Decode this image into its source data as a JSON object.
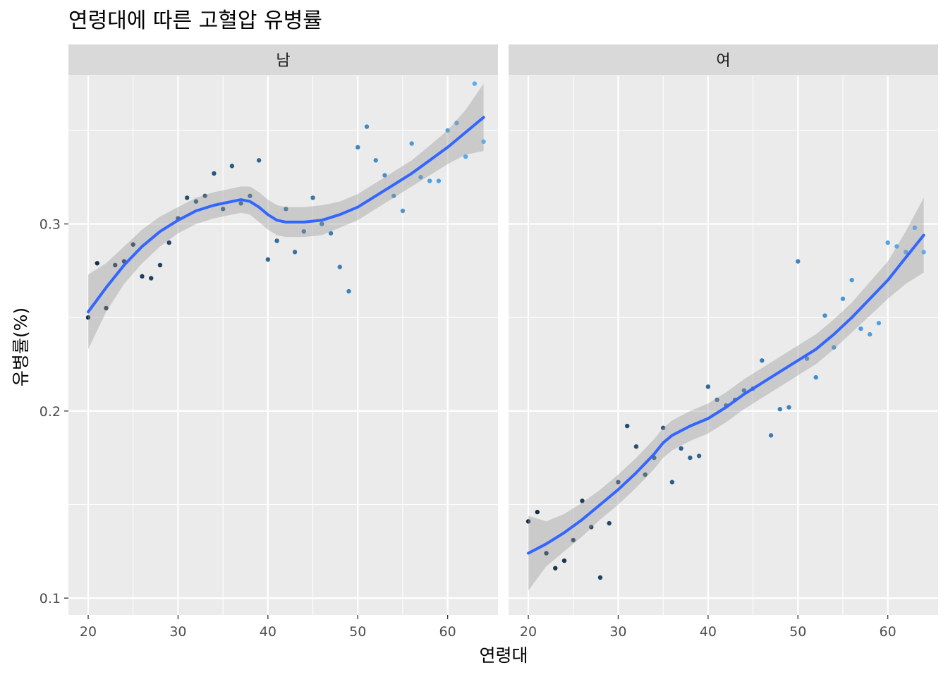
{
  "chart_data": {
    "type": "scatter",
    "title": "연령대에 따른 고혈압 유병률",
    "xlabel": "연령대",
    "ylabel": "유병률(%)",
    "x_ticks": [
      20,
      30,
      40,
      50,
      60
    ],
    "y_ticks": [
      "0.1",
      "0.2",
      "0.3"
    ],
    "y_tick_values": [
      0.1,
      0.2,
      0.3
    ],
    "xlim": [
      17.8,
      65.6
    ],
    "ylim": [
      0.091,
      0.379
    ],
    "grid": true,
    "legend": "none",
    "point_colors": {
      "low": "#132B43",
      "high": "#56B1F7"
    },
    "smooth_color": "#3366FF",
    "ribbon_color": "#999999",
    "panels": [
      {
        "name": "남",
        "points": [
          [
            20,
            0.25
          ],
          [
            21,
            0.279
          ],
          [
            22,
            0.255
          ],
          [
            23,
            0.278
          ],
          [
            24,
            0.28
          ],
          [
            25,
            0.289
          ],
          [
            26,
            0.272
          ],
          [
            27,
            0.271
          ],
          [
            28,
            0.278
          ],
          [
            29,
            0.29
          ],
          [
            30,
            0.303
          ],
          [
            31,
            0.314
          ],
          [
            32,
            0.312
          ],
          [
            33,
            0.315
          ],
          [
            34,
            0.327
          ],
          [
            35,
            0.308
          ],
          [
            36,
            0.331
          ],
          [
            37,
            0.311
          ],
          [
            38,
            0.315
          ],
          [
            39,
            0.334
          ],
          [
            40,
            0.281
          ],
          [
            41,
            0.291
          ],
          [
            42,
            0.308
          ],
          [
            43,
            0.285
          ],
          [
            44,
            0.296
          ],
          [
            45,
            0.314
          ],
          [
            46,
            0.3
          ],
          [
            47,
            0.295
          ],
          [
            48,
            0.277
          ],
          [
            49,
            0.264
          ],
          [
            50,
            0.341
          ],
          [
            51,
            0.352
          ],
          [
            52,
            0.334
          ],
          [
            53,
            0.326
          ],
          [
            54,
            0.315
          ],
          [
            55,
            0.307
          ],
          [
            56,
            0.343
          ],
          [
            57,
            0.325
          ],
          [
            58,
            0.323
          ],
          [
            59,
            0.323
          ],
          [
            60,
            0.35
          ],
          [
            61,
            0.354
          ],
          [
            62,
            0.336
          ],
          [
            63,
            0.375
          ],
          [
            64,
            0.344
          ]
        ],
        "smooth": [
          [
            20,
            0.253
          ],
          [
            22,
            0.266
          ],
          [
            24,
            0.278
          ],
          [
            26,
            0.288
          ],
          [
            28,
            0.296
          ],
          [
            30,
            0.302
          ],
          [
            32,
            0.307
          ],
          [
            34,
            0.31
          ],
          [
            36,
            0.312
          ],
          [
            37,
            0.313
          ],
          [
            38,
            0.312
          ],
          [
            39,
            0.309
          ],
          [
            40,
            0.305
          ],
          [
            41,
            0.302
          ],
          [
            42,
            0.301
          ],
          [
            44,
            0.301
          ],
          [
            46,
            0.302
          ],
          [
            48,
            0.305
          ],
          [
            50,
            0.309
          ],
          [
            52,
            0.315
          ],
          [
            54,
            0.321
          ],
          [
            56,
            0.327
          ],
          [
            58,
            0.334
          ],
          [
            60,
            0.341
          ],
          [
            62,
            0.349
          ],
          [
            64,
            0.357
          ]
        ],
        "ribbon": [
          [
            20,
            0.233,
            0.273
          ],
          [
            22,
            0.253,
            0.279
          ],
          [
            24,
            0.268,
            0.288
          ],
          [
            26,
            0.279,
            0.297
          ],
          [
            28,
            0.288,
            0.304
          ],
          [
            30,
            0.295,
            0.309
          ],
          [
            32,
            0.3,
            0.314
          ],
          [
            34,
            0.303,
            0.317
          ],
          [
            36,
            0.305,
            0.319
          ],
          [
            37,
            0.306,
            0.32
          ],
          [
            38,
            0.305,
            0.32
          ],
          [
            39,
            0.301,
            0.317
          ],
          [
            40,
            0.297,
            0.313
          ],
          [
            41,
            0.294,
            0.31
          ],
          [
            42,
            0.293,
            0.309
          ],
          [
            44,
            0.293,
            0.309
          ],
          [
            46,
            0.294,
            0.31
          ],
          [
            48,
            0.298,
            0.312
          ],
          [
            50,
            0.302,
            0.316
          ],
          [
            52,
            0.308,
            0.322
          ],
          [
            54,
            0.314,
            0.328
          ],
          [
            56,
            0.32,
            0.334
          ],
          [
            58,
            0.326,
            0.342
          ],
          [
            60,
            0.332,
            0.35
          ],
          [
            62,
            0.337,
            0.361
          ],
          [
            64,
            0.339,
            0.375
          ]
        ]
      },
      {
        "name": "여",
        "points": [
          [
            20,
            0.141
          ],
          [
            21,
            0.146
          ],
          [
            22,
            0.124
          ],
          [
            23,
            0.116
          ],
          [
            24,
            0.12
          ],
          [
            25,
            0.131
          ],
          [
            26,
            0.152
          ],
          [
            27,
            0.138
          ],
          [
            28,
            0.111
          ],
          [
            29,
            0.14
          ],
          [
            30,
            0.162
          ],
          [
            31,
            0.192
          ],
          [
            32,
            0.181
          ],
          [
            33,
            0.166
          ],
          [
            34,
            0.175
          ],
          [
            35,
            0.191
          ],
          [
            36,
            0.162
          ],
          [
            37,
            0.18
          ],
          [
            38,
            0.175
          ],
          [
            39,
            0.176
          ],
          [
            40,
            0.213
          ],
          [
            41,
            0.206
          ],
          [
            42,
            0.203
          ],
          [
            43,
            0.206
          ],
          [
            44,
            0.211
          ],
          [
            45,
            0.212
          ],
          [
            46,
            0.227
          ],
          [
            47,
            0.187
          ],
          [
            48,
            0.201
          ],
          [
            49,
            0.202
          ],
          [
            50,
            0.28
          ],
          [
            51,
            0.228
          ],
          [
            52,
            0.218
          ],
          [
            53,
            0.251
          ],
          [
            54,
            0.234
          ],
          [
            55,
            0.26
          ],
          [
            56,
            0.27
          ],
          [
            57,
            0.244
          ],
          [
            58,
            0.241
          ],
          [
            59,
            0.247
          ],
          [
            60,
            0.29
          ],
          [
            61,
            0.288
          ],
          [
            62,
            0.285
          ],
          [
            63,
            0.298
          ],
          [
            64,
            0.285
          ]
        ],
        "smooth": [
          [
            20,
            0.124
          ],
          [
            22,
            0.129
          ],
          [
            24,
            0.135
          ],
          [
            26,
            0.142
          ],
          [
            28,
            0.15
          ],
          [
            30,
            0.158
          ],
          [
            32,
            0.167
          ],
          [
            34,
            0.177
          ],
          [
            35,
            0.183
          ],
          [
            36,
            0.187
          ],
          [
            38,
            0.192
          ],
          [
            40,
            0.196
          ],
          [
            42,
            0.202
          ],
          [
            44,
            0.209
          ],
          [
            46,
            0.215
          ],
          [
            48,
            0.221
          ],
          [
            50,
            0.227
          ],
          [
            52,
            0.233
          ],
          [
            54,
            0.241
          ],
          [
            56,
            0.25
          ],
          [
            58,
            0.26
          ],
          [
            60,
            0.27
          ],
          [
            62,
            0.282
          ],
          [
            64,
            0.294
          ]
        ],
        "ribbon": [
          [
            20,
            0.104,
            0.144
          ],
          [
            22,
            0.117,
            0.141
          ],
          [
            24,
            0.125,
            0.145
          ],
          [
            26,
            0.133,
            0.151
          ],
          [
            28,
            0.142,
            0.158
          ],
          [
            30,
            0.15,
            0.166
          ],
          [
            32,
            0.159,
            0.175
          ],
          [
            34,
            0.169,
            0.185
          ],
          [
            35,
            0.175,
            0.191
          ],
          [
            36,
            0.179,
            0.195
          ],
          [
            38,
            0.184,
            0.2
          ],
          [
            40,
            0.188,
            0.204
          ],
          [
            42,
            0.194,
            0.21
          ],
          [
            44,
            0.201,
            0.217
          ],
          [
            46,
            0.207,
            0.223
          ],
          [
            48,
            0.213,
            0.229
          ],
          [
            50,
            0.219,
            0.235
          ],
          [
            52,
            0.225,
            0.241
          ],
          [
            54,
            0.233,
            0.249
          ],
          [
            56,
            0.242,
            0.258
          ],
          [
            58,
            0.251,
            0.269
          ],
          [
            60,
            0.26,
            0.28
          ],
          [
            62,
            0.268,
            0.296
          ],
          [
            64,
            0.274,
            0.314
          ]
        ]
      }
    ]
  }
}
